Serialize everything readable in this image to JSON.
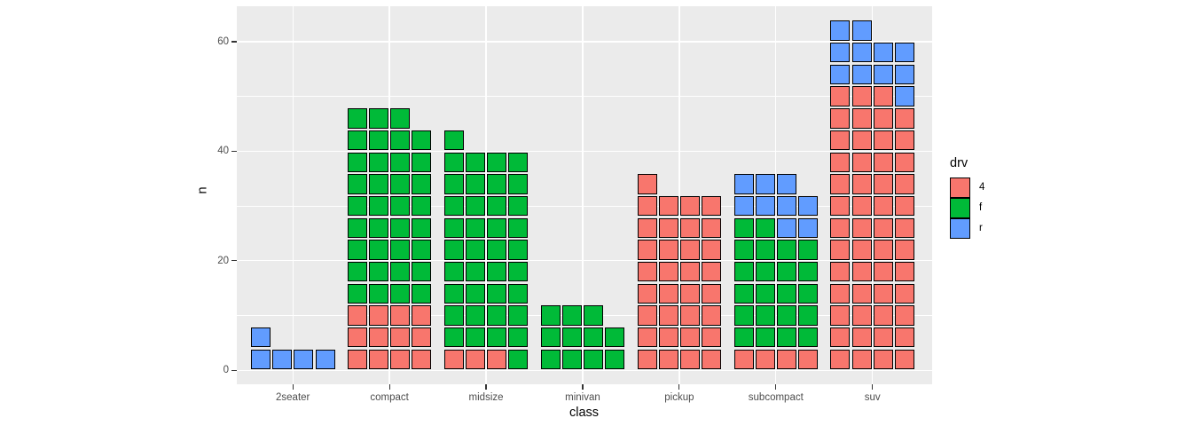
{
  "chart_data": {
    "type": "bar",
    "subtype": "stacked-unit-waffle",
    "title": "",
    "xlabel": "class",
    "ylabel": "n",
    "units_per_row": 4,
    "unit_value": 1,
    "categories": [
      "2seater",
      "compact",
      "midsize",
      "minivan",
      "pickup",
      "subcompact",
      "suv"
    ],
    "bars": [
      {
        "category": "2seater",
        "total": 5,
        "segments": [
          {
            "drv": "r",
            "count": 5
          }
        ]
      },
      {
        "category": "compact",
        "total": 47,
        "segments": [
          {
            "drv": "4",
            "count": 12
          },
          {
            "drv": "f",
            "count": 35
          }
        ]
      },
      {
        "category": "midsize",
        "total": 41,
        "segments": [
          {
            "drv": "4",
            "count": 3
          },
          {
            "drv": "f",
            "count": 38
          }
        ]
      },
      {
        "category": "minivan",
        "total": 11,
        "segments": [
          {
            "drv": "f",
            "count": 11
          }
        ]
      },
      {
        "category": "pickup",
        "total": 33,
        "segments": [
          {
            "drv": "4",
            "count": 33
          }
        ]
      },
      {
        "category": "subcompact",
        "total": 35,
        "segments": [
          {
            "drv": "4",
            "count": 4
          },
          {
            "drv": "f",
            "count": 22
          },
          {
            "drv": "r",
            "count": 9
          }
        ]
      },
      {
        "category": "suv",
        "total": 62,
        "segments": [
          {
            "drv": "4",
            "count": 51
          },
          {
            "drv": "r",
            "count": 11
          }
        ]
      }
    ],
    "y_axis": {
      "label": "n",
      "major_ticks": [
        0,
        20,
        40,
        60
      ],
      "tick_labels": [
        "0",
        "20",
        "40",
        "60"
      ],
      "minor_gridlines": [
        10,
        30,
        50
      ],
      "range": [
        0,
        64
      ],
      "grid": true
    },
    "x_axis": {
      "label": "class",
      "tick_labels": [
        "2seater",
        "compact",
        "midsize",
        "minivan",
        "pickup",
        "subcompact",
        "suv"
      ],
      "grid": true
    },
    "legend": {
      "title": "drv",
      "position": "right",
      "entries": [
        {
          "label": "4",
          "color": "#F8766D"
        },
        {
          "label": "f",
          "color": "#00BA38"
        },
        {
          "label": "r",
          "color": "#619CFF"
        }
      ]
    },
    "style": {
      "panel_bg": "#EBEBEB",
      "gridline_color": "#FFFFFF",
      "square_border_color": "#000000",
      "tick_label_color": "#4D4D4D",
      "axis_title_color": "#000000",
      "tick_mark_color": "#333333"
    }
  }
}
